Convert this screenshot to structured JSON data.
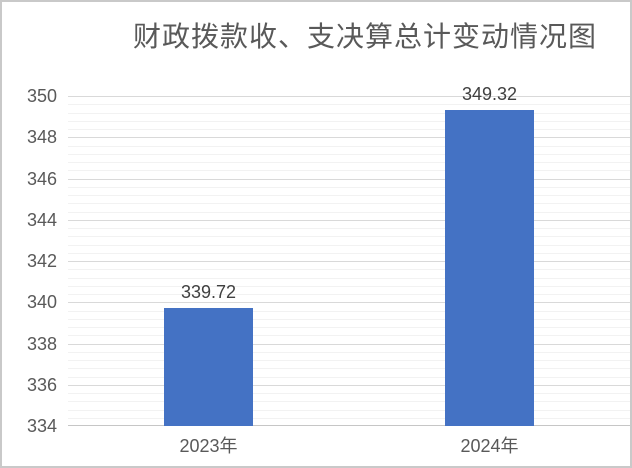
{
  "window": {
    "background": "#ffffff",
    "border_color": "#c9c9c9"
  },
  "chart_data": {
    "type": "bar",
    "title": "财政拨款收、支决算总计变动情况图",
    "categories": [
      "2023年",
      "2024年"
    ],
    "values": [
      339.72,
      349.32
    ],
    "data_labels": [
      "339.72",
      "349.32"
    ],
    "xlabel": "",
    "ylabel": "",
    "ylim": [
      334,
      350
    ],
    "y_major_unit": 2,
    "y_minor_unit": 0.4,
    "y_tick_labels": [
      "334",
      "336",
      "338",
      "340",
      "342",
      "344",
      "346",
      "348",
      "350"
    ],
    "grid": "horizontal major and minor gridlines",
    "legend_position": "none",
    "bar_color": "#4472C4",
    "colors": {
      "title_text": "#595959",
      "axis_text": "#595959",
      "data_label_text": "#404040",
      "major_gridline": "#d9d9d9",
      "minor_gridline": "#f2f2f2",
      "axis_line": "#c6c6c6"
    }
  }
}
